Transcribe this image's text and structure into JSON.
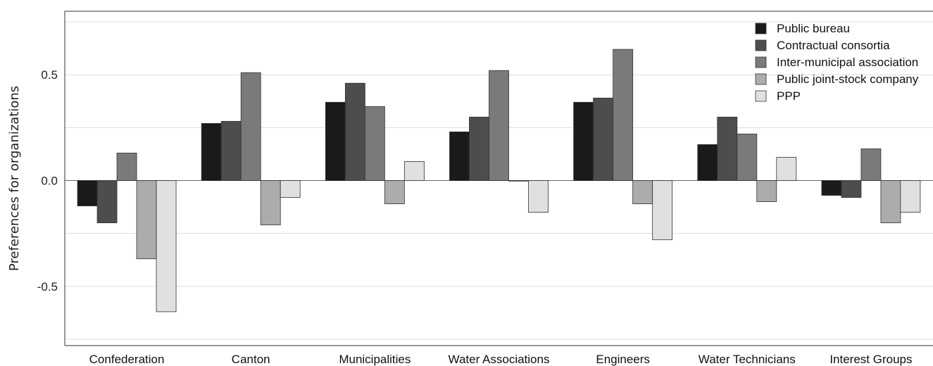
{
  "chart_data": {
    "type": "bar",
    "title": "",
    "xlabel": "",
    "ylabel": "Preferences for organizations",
    "ylim": [
      -0.78,
      0.8
    ],
    "yticks": [
      -0.5,
      0.0,
      0.5
    ],
    "ytick_labels": [
      "-0.5",
      "0.0",
      "0.5"
    ],
    "grid": "horizontal",
    "legend_position": "top-right",
    "categories": [
      "Confederation",
      "Canton",
      "Municipalities",
      "Water Associations",
      "Engineers",
      "Water Technicians",
      "Interest Groups"
    ],
    "series": [
      {
        "name": "Public bureau",
        "color": "#1a1a1a",
        "values": [
          -0.12,
          0.27,
          0.37,
          0.23,
          0.37,
          0.17,
          -0.07
        ]
      },
      {
        "name": "Contractual consortia",
        "color": "#4d4d4d",
        "values": [
          -0.2,
          0.28,
          0.46,
          0.3,
          0.39,
          0.3,
          -0.08
        ]
      },
      {
        "name": "Inter-municipal association",
        "color": "#7a7a7a",
        "values": [
          0.13,
          0.51,
          0.35,
          0.52,
          0.62,
          0.22,
          0.15
        ]
      },
      {
        "name": "Public joint-stock company",
        "color": "#acacac",
        "values": [
          -0.37,
          -0.21,
          -0.11,
          0.0,
          -0.11,
          -0.1,
          -0.2
        ]
      },
      {
        "name": "PPP",
        "color": "#e0e0e0",
        "values": [
          -0.62,
          -0.08,
          0.09,
          -0.15,
          -0.28,
          0.11,
          -0.15
        ]
      }
    ]
  }
}
